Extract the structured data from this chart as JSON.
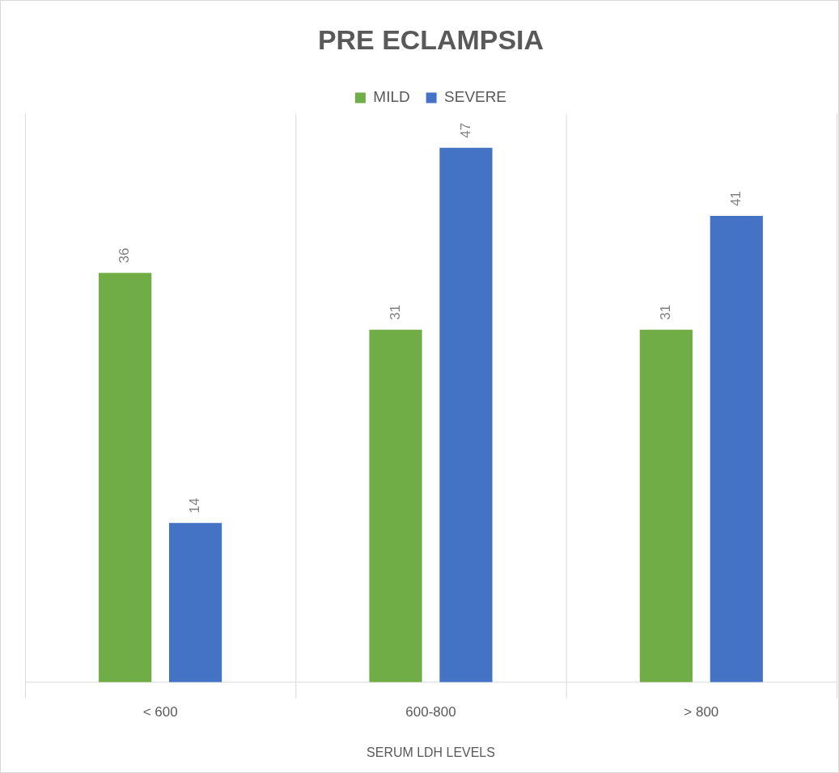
{
  "chart_data": {
    "type": "bar",
    "title": "PRE ECLAMPSIA",
    "xlabel": "SERUM LDH LEVELS",
    "categories": [
      "< 600",
      "600-800",
      "> 800"
    ],
    "series": [
      {
        "name": "MILD",
        "color": "#70ad47",
        "values": [
          36,
          31,
          31
        ]
      },
      {
        "name": "SEVERE",
        "color": "#4472c4",
        "values": [
          14,
          47,
          41
        ]
      }
    ],
    "ylim": [
      0,
      50
    ],
    "tick_labels": "x",
    "grid": "x",
    "legend": "top",
    "data_labels": true
  }
}
